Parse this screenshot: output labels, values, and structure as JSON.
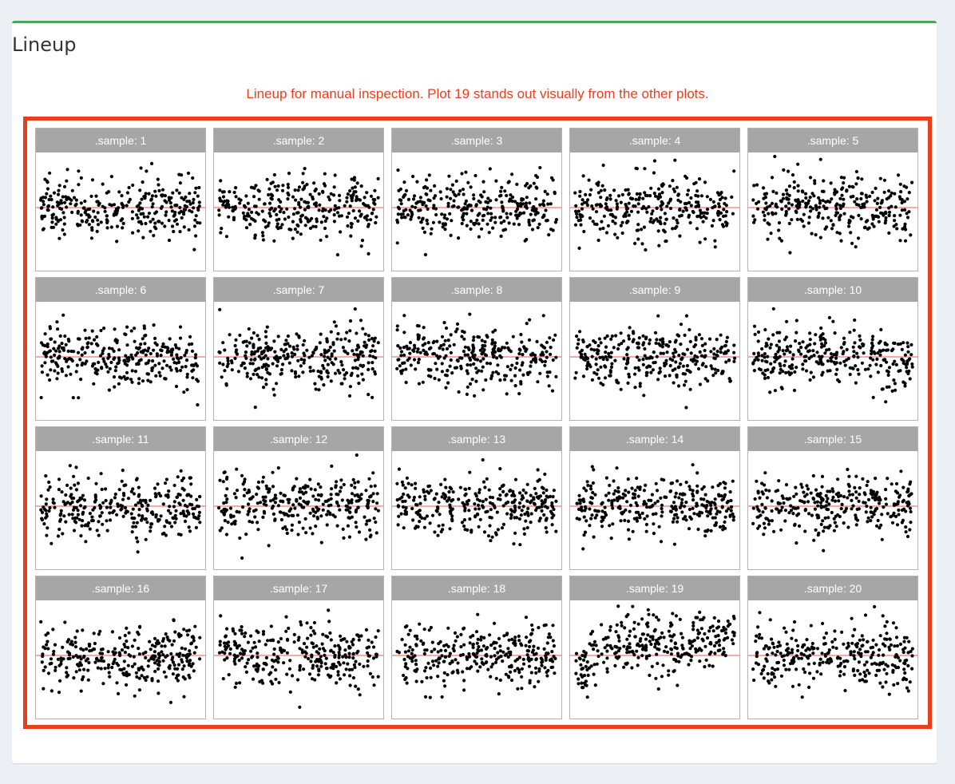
{
  "box": {
    "title": "Lineup",
    "caption": "Lineup for manual inspection. Plot 19 stands out visually from the other plots.",
    "accent_color": "#4aa55e",
    "frame_color": "#e8401c"
  },
  "chart_data": {
    "type": "scatter",
    "layout": "5 columns x 4 rows small multiples",
    "panels": [
      {
        "label": ".sample: 1",
        "pattern": "random"
      },
      {
        "label": ".sample: 2",
        "pattern": "random"
      },
      {
        "label": ".sample: 3",
        "pattern": "random"
      },
      {
        "label": ".sample: 4",
        "pattern": "random"
      },
      {
        "label": ".sample: 5",
        "pattern": "random"
      },
      {
        "label": ".sample: 6",
        "pattern": "random"
      },
      {
        "label": ".sample: 7",
        "pattern": "random"
      },
      {
        "label": ".sample: 8",
        "pattern": "random"
      },
      {
        "label": ".sample: 9",
        "pattern": "random"
      },
      {
        "label": ".sample: 10",
        "pattern": "random"
      },
      {
        "label": ".sample: 11",
        "pattern": "random"
      },
      {
        "label": ".sample: 12",
        "pattern": "random"
      },
      {
        "label": ".sample: 13",
        "pattern": "random"
      },
      {
        "label": ".sample: 14",
        "pattern": "random"
      },
      {
        "label": ".sample: 15",
        "pattern": "random"
      },
      {
        "label": ".sample: 16",
        "pattern": "random"
      },
      {
        "label": ".sample: 17",
        "pattern": "random"
      },
      {
        "label": ".sample: 18",
        "pattern": "random"
      },
      {
        "label": ".sample: 19",
        "pattern": "structured"
      },
      {
        "label": ".sample: 20",
        "pattern": "random"
      }
    ],
    "reference_line": {
      "y": 0,
      "color": "#f8766d"
    },
    "point_color": "#000000",
    "points_per_panel": 300,
    "xlabel": "",
    "ylabel": "",
    "grid": false,
    "legend": "none"
  }
}
